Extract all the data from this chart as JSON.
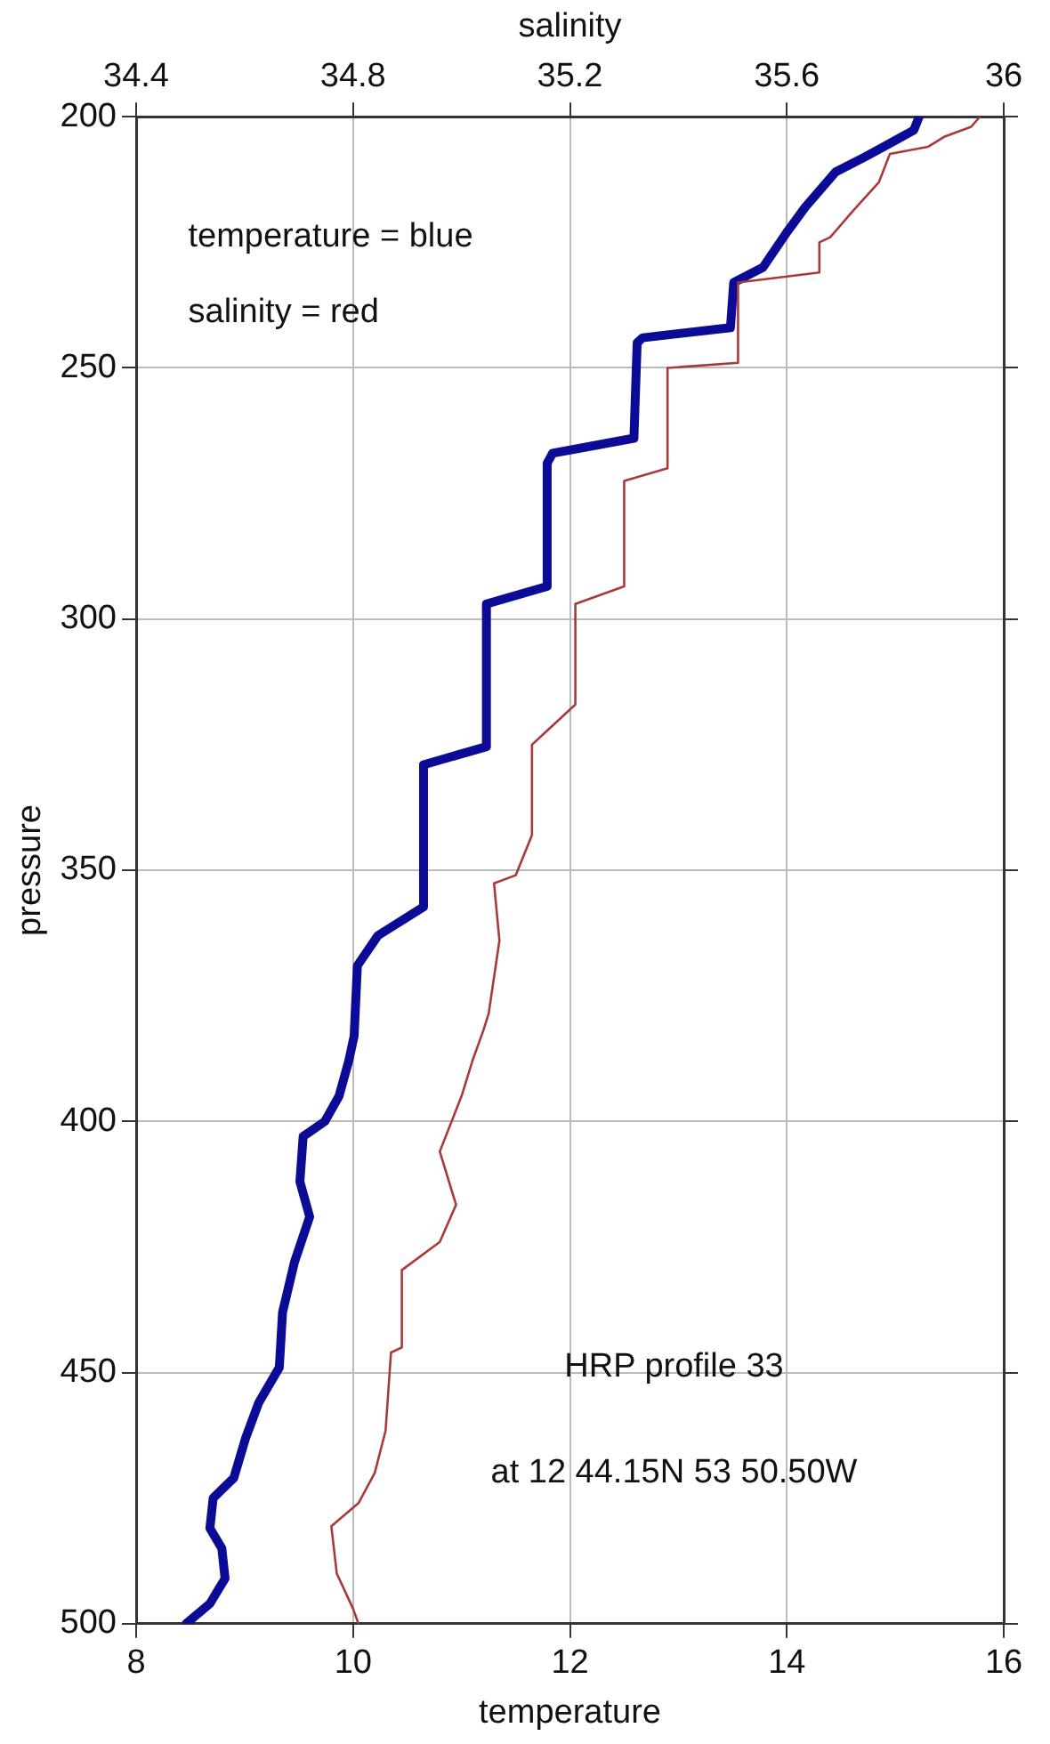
{
  "chart_data": {
    "type": "line",
    "xlabel": "temperature",
    "x2label": "salinity",
    "ylabel": "pressure",
    "xlim": [
      8,
      16
    ],
    "xticks": [
      8,
      10,
      12,
      14,
      16
    ],
    "x2lim": [
      34.4,
      36
    ],
    "x2ticks": [
      34.4,
      34.8,
      35.2,
      35.6,
      36
    ],
    "ylim": [
      500,
      200
    ],
    "yticks": [
      200,
      250,
      300,
      350,
      400,
      450,
      500
    ],
    "grid": true,
    "legend": false,
    "annotations": [
      "temperature = blue",
      "salinity = red",
      "HRP profile 33",
      "at 12 44.15N 53 50.50W"
    ],
    "series": [
      {
        "color": "#0b0b96",
        "x": [
          15.22,
          15.17,
          14.89,
          14.72,
          14.45,
          14.17,
          14.0,
          13.78,
          13.51,
          13.48,
          12.67,
          12.62,
          12.59,
          11.84,
          11.79,
          11.79,
          11.23,
          11.23,
          10.65,
          10.65,
          10.23,
          10.04,
          10.01,
          9.96,
          9.87,
          9.74,
          9.54,
          9.51,
          9.6,
          9.46,
          9.35,
          9.32,
          9.13,
          9.01,
          8.9,
          8.71,
          8.68,
          8.79,
          8.82,
          8.68,
          8.46
        ],
        "values": [
          200,
          202.7,
          206,
          208,
          211,
          218,
          223,
          230,
          233,
          242,
          244,
          245,
          264,
          267,
          269,
          293.5,
          297,
          325.4,
          329,
          357.3,
          363,
          369,
          383,
          388,
          395,
          400,
          403,
          412,
          419,
          428,
          438,
          449,
          456,
          463,
          471,
          475,
          481,
          485,
          491,
          496,
          500
        ]
      },
      {
        "color": "#a83a3a",
        "axis": "x2",
        "x": [
          35.956,
          35.94,
          35.89,
          35.86,
          35.79,
          35.77,
          35.72,
          35.68,
          35.66,
          35.66,
          35.51,
          35.51,
          35.38,
          35.38,
          35.3,
          35.3,
          35.21,
          35.21,
          35.16,
          35.13,
          35.13,
          35.1,
          35.06,
          35.07,
          35.05,
          35.04,
          35.02,
          35.0,
          34.96,
          34.99,
          34.96,
          34.89,
          34.89,
          34.87,
          34.86,
          34.84,
          34.81,
          34.76,
          34.77,
          34.8,
          34.81
        ],
        "values": [
          200,
          202,
          204,
          206,
          207.4,
          213,
          219,
          224,
          225,
          231,
          233,
          249,
          250,
          270,
          272.5,
          293.5,
          297,
          317,
          322,
          325,
          343,
          351,
          352.6,
          364,
          378.6,
          382,
          388,
          395,
          406,
          416.6,
          424,
          429.6,
          445,
          446,
          461.6,
          470,
          476,
          480.6,
          490,
          497,
          500
        ]
      }
    ]
  }
}
